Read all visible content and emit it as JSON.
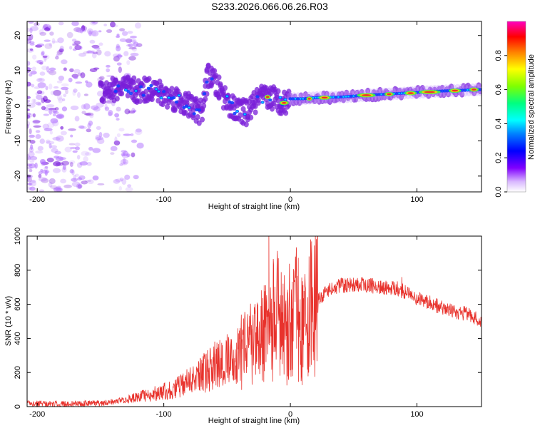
{
  "title": "S233.2026.066.06.26.R03",
  "colors": {
    "snr_line": "#e8322c",
    "spectrogram_base": "#7a1fd8",
    "spectrogram_peak": "#e8322c"
  },
  "chart_data": [
    {
      "type": "heatmap",
      "name": "spectrogram",
      "xlabel": "Height of straight line (km)",
      "ylabel": "Frequency (Hz)",
      "xlim": [
        -208,
        151
      ],
      "ylim": [
        -24.5,
        24
      ],
      "xticks": [
        -200,
        -100,
        0,
        100
      ],
      "yticks": [
        -20,
        -10,
        0,
        10,
        20
      ],
      "colorbar": {
        "label": "Normalized spectral amplitude",
        "range": [
          0,
          1
        ],
        "ticks": [
          0.0,
          0.2,
          0.4,
          0.6,
          0.8
        ],
        "colormap": "rainbow"
      },
      "ridge": [
        [
          -145,
          4.5
        ],
        [
          -130,
          5
        ],
        [
          -120,
          4
        ],
        [
          -110,
          5
        ],
        [
          -100,
          3
        ],
        [
          -90,
          2
        ],
        [
          -80,
          0
        ],
        [
          -70,
          -2
        ],
        [
          -65,
          9
        ],
        [
          -55,
          4
        ],
        [
          -45,
          -1
        ],
        [
          -35,
          -2
        ],
        [
          -25,
          2
        ],
        [
          -15,
          2.5
        ],
        [
          -5,
          0.8
        ],
        [
          0,
          2
        ],
        [
          10,
          2
        ],
        [
          20,
          2.3
        ],
        [
          40,
          2.5
        ],
        [
          60,
          3
        ],
        [
          80,
          3.4
        ],
        [
          100,
          3.8
        ],
        [
          120,
          4.2
        ],
        [
          150,
          4.6
        ]
      ]
    },
    {
      "type": "line",
      "name": "snr",
      "xlabel": "Height of straight line (km)",
      "ylabel": "SNR (10 * v/v)",
      "xlim": [
        -208,
        151
      ],
      "ylim": [
        0,
        1000
      ],
      "xticks": [
        -200,
        -100,
        0,
        100
      ],
      "yticks": [
        0,
        200,
        400,
        600,
        800,
        1000
      ],
      "series": [
        {
          "name": "SNR",
          "x": [
            -208,
            -180,
            -150,
            -130,
            -110,
            -90,
            -75,
            -60,
            -45,
            -35,
            -28,
            -22,
            -18,
            -14,
            -10,
            -5,
            0,
            5,
            10,
            15,
            20,
            28,
            40,
            55,
            70,
            85,
            100,
            120,
            140,
            151
          ],
          "y": [
            20,
            15,
            20,
            40,
            70,
            110,
            160,
            240,
            280,
            330,
            380,
            420,
            450,
            500,
            550,
            470,
            500,
            560,
            420,
            550,
            620,
            670,
            710,
            715,
            705,
            690,
            640,
            580,
            540,
            500
          ]
        }
      ],
      "spikes": [
        {
          "x": -17,
          "y": 1000
        },
        {
          "x": -11,
          "y": 560
        },
        {
          "x": -2,
          "y": 670
        },
        {
          "x": 5,
          "y": 710
        },
        {
          "x": 10,
          "y": 230
        },
        {
          "x": 88,
          "y": 760
        }
      ]
    }
  ]
}
